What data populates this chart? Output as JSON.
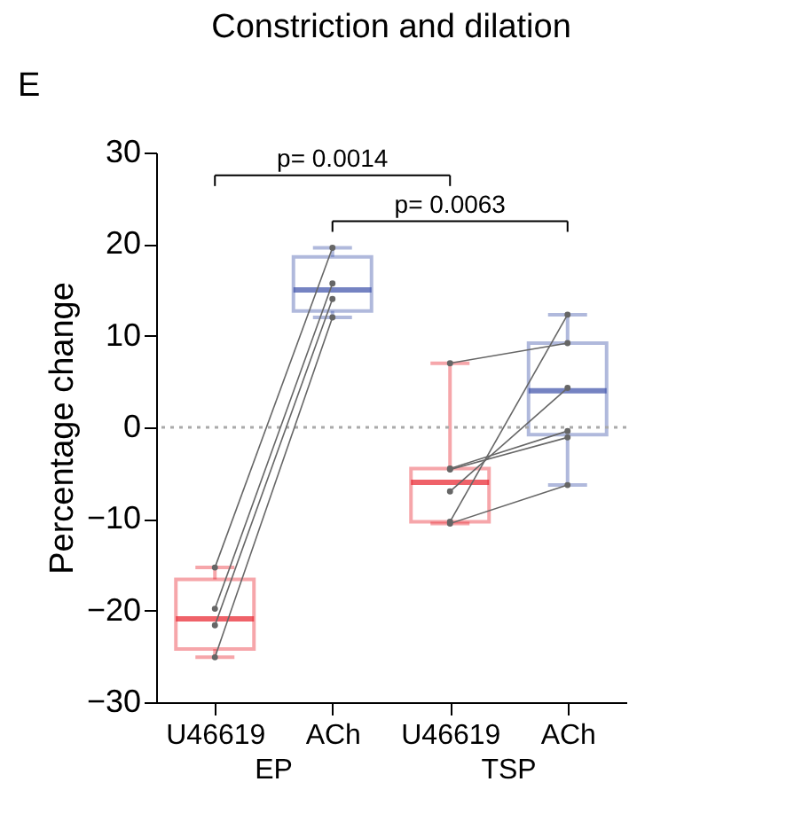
{
  "chart_data": {
    "type": "box",
    "title": "Constriction and dilation",
    "ylabel": "Percentage change",
    "categories": [
      "U46619",
      "ACh",
      "U46619",
      "ACh"
    ],
    "colors": [
      "#e8202a",
      "#3a4fa8",
      "#e8202a",
      "#3a4fa8"
    ],
    "boxes": [
      {
        "low": -25.1,
        "q1": -24.2,
        "median": -20.9,
        "q3": -16.6,
        "high": -15.3
      },
      {
        "low": 12.0,
        "q1": 12.7,
        "median": 15.0,
        "q3": 18.6,
        "high": 19.6
      },
      {
        "low": -10.5,
        "q1": -10.3,
        "median": -6.0,
        "q3": -4.5,
        "high": 7.0
      },
      {
        "low": -6.3,
        "q1": -0.8,
        "median": 4.0,
        "q3": 9.2,
        "high": 12.3
      }
    ],
    "series": [
      {
        "type": "line",
        "color": "#666666",
        "values": [
          -15.3,
          19.6,
          null,
          null
        ]
      },
      {
        "type": "line",
        "color": "#666666",
        "values": [
          -19.8,
          15.7,
          null,
          null
        ]
      },
      {
        "type": "line",
        "color": "#666666",
        "values": [
          -21.6,
          14.0,
          null,
          null
        ]
      },
      {
        "type": "line",
        "color": "#666666",
        "values": [
          -25.1,
          12.0,
          null,
          null
        ]
      },
      {
        "type": "line",
        "color": "#666666",
        "values": [
          null,
          null,
          7.0,
          9.2
        ]
      },
      {
        "type": "line",
        "color": "#666666",
        "values": [
          null,
          null,
          -4.5,
          -0.4
        ]
      },
      {
        "type": "line",
        "color": "#666666",
        "values": [
          null,
          null,
          -4.6,
          -1.1
        ]
      },
      {
        "type": "line",
        "color": "#666666",
        "values": [
          null,
          null,
          -7.0,
          4.3
        ]
      },
      {
        "type": "line",
        "color": "#666666",
        "values": [
          null,
          null,
          -10.3,
          12.3
        ]
      },
      {
        "type": "line",
        "color": "#666666",
        "values": [
          null,
          null,
          -10.5,
          -6.3
        ]
      }
    ],
    "marker": "circle",
    "ylim": [
      -30,
      30
    ],
    "yticks": [
      -30,
      -20,
      -10,
      0,
      10,
      20,
      30
    ],
    "ref_lines": [
      {
        "axis": "y",
        "value": 0,
        "color": "#aaaaaa",
        "line_style": "dotted"
      }
    ],
    "annotations": [
      "E",
      "p= 0.0014",
      "p= 0.0063",
      "EP",
      "TSP"
    ],
    "grid": false
  }
}
